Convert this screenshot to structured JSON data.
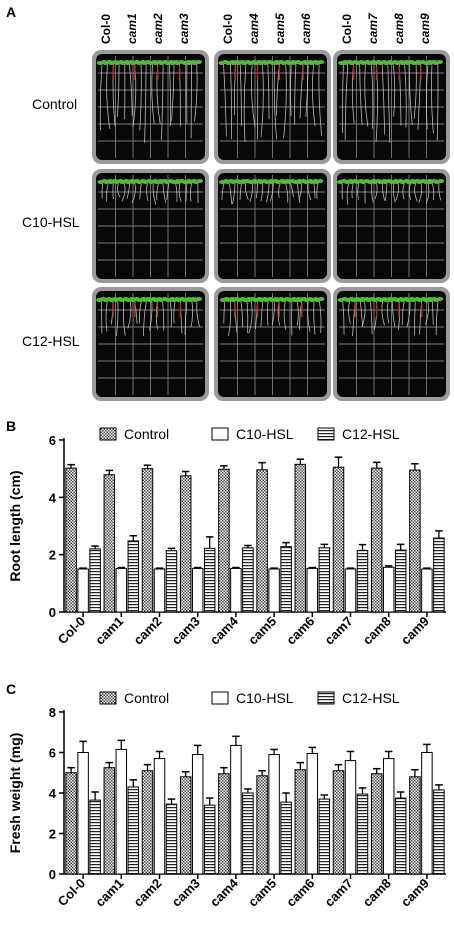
{
  "panels": {
    "a": {
      "letter": "A"
    },
    "b": {
      "letter": "B"
    },
    "c": {
      "letter": "C"
    }
  },
  "photo": {
    "column_groups": [
      [
        "Col-0",
        "cam1",
        "cam2",
        "cam3"
      ],
      [
        "Col-0",
        "cam4",
        "cam5",
        "cam6"
      ],
      [
        "Col-0",
        "cam7",
        "cam8",
        "cam9"
      ]
    ],
    "rows": [
      "Control",
      "C10-HSL",
      "C12-HSL"
    ],
    "colors": {
      "plate_bg": "#080808",
      "plate_rim": "#9a9a9a",
      "grid": "#7c7c7c",
      "seedling": "#56b83a",
      "root": "#d8d8d8",
      "stem_red": "#b8322a"
    }
  },
  "chart_data": [
    {
      "type": "bar",
      "panel": "B",
      "ylabel": "Root length (cm)",
      "xlabel": "",
      "ylim": [
        0,
        6
      ],
      "yticks": [
        "0",
        "2",
        "4",
        "6"
      ],
      "categories": [
        "Col-0",
        "cam1",
        "cam2",
        "cam3",
        "cam4",
        "cam5",
        "cam6",
        "cam7",
        "cam8",
        "cam9"
      ],
      "legend_position": "top",
      "series": [
        {
          "name": "Control",
          "pattern": "checker",
          "values": [
            5.02,
            4.79,
            5.0,
            4.75,
            4.98,
            4.96,
            5.15,
            5.05,
            5.02,
            4.95
          ],
          "errors": [
            0.12,
            0.15,
            0.12,
            0.15,
            0.12,
            0.25,
            0.18,
            0.35,
            0.2,
            0.22
          ]
        },
        {
          "name": "C10-HSL",
          "pattern": "blank",
          "values": [
            1.5,
            1.52,
            1.5,
            1.52,
            1.52,
            1.5,
            1.52,
            1.5,
            1.56,
            1.5
          ],
          "errors": [
            0.03,
            0.03,
            0.03,
            0.03,
            0.03,
            0.03,
            0.03,
            0.03,
            0.05,
            0.03
          ]
        },
        {
          "name": "C12-HSL",
          "pattern": "stripe",
          "values": [
            2.2,
            2.48,
            2.14,
            2.22,
            2.24,
            2.28,
            2.24,
            2.15,
            2.16,
            2.58
          ],
          "errors": [
            0.1,
            0.18,
            0.08,
            0.4,
            0.08,
            0.14,
            0.12,
            0.2,
            0.2,
            0.25
          ]
        }
      ]
    },
    {
      "type": "bar",
      "panel": "C",
      "ylabel": "Fresh weight (mg)",
      "xlabel": "",
      "ylim": [
        0,
        8
      ],
      "yticks": [
        "0",
        "2",
        "4",
        "6",
        "8"
      ],
      "categories": [
        "Col-0",
        "cam1",
        "cam2",
        "cam3",
        "cam4",
        "cam5",
        "cam6",
        "cam7",
        "cam8",
        "cam9"
      ],
      "legend_position": "top",
      "series": [
        {
          "name": "Control",
          "pattern": "checker",
          "values": [
            5.0,
            5.25,
            5.1,
            4.8,
            4.95,
            4.85,
            5.15,
            5.1,
            4.95,
            4.8
          ],
          "errors": [
            0.25,
            0.25,
            0.3,
            0.25,
            0.3,
            0.25,
            0.35,
            0.3,
            0.25,
            0.35
          ]
        },
        {
          "name": "C10-HSL",
          "pattern": "blank",
          "values": [
            6.0,
            6.15,
            5.7,
            5.9,
            6.35,
            5.9,
            5.95,
            5.6,
            5.7,
            6.0
          ],
          "errors": [
            0.55,
            0.45,
            0.35,
            0.45,
            0.45,
            0.25,
            0.3,
            0.45,
            0.35,
            0.4
          ]
        },
        {
          "name": "C12-HSL",
          "pattern": "stripe",
          "values": [
            3.65,
            4.3,
            3.45,
            3.4,
            4.0,
            3.55,
            3.7,
            3.95,
            3.75,
            4.15
          ],
          "errors": [
            0.4,
            0.35,
            0.25,
            0.35,
            0.2,
            0.45,
            0.2,
            0.3,
            0.3,
            0.25
          ]
        }
      ]
    }
  ]
}
